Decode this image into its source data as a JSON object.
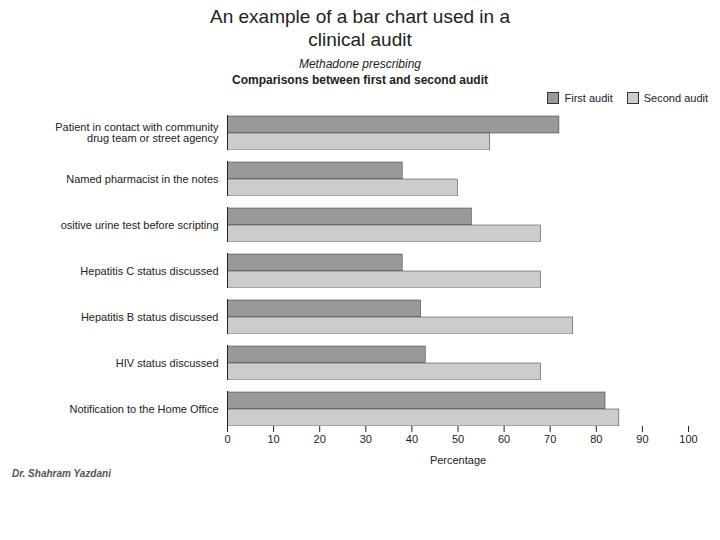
{
  "chart_data": {
    "type": "bar",
    "orientation": "horizontal",
    "title": "An example of a bar chart used in a\nclinical audit",
    "subtitle": "Methadone prescribing\nComparisons between first and second audit",
    "annotations": [
      "Dr. Shahram Yazdani"
    ],
    "categories": [
      "Patient in contact with community\ndrug team or street agency",
      "Named pharmacist in the notes",
      "ositive urine test before scripting",
      "Hepatitis C status discussed",
      "Hepatitis B status discussed",
      "HIV status discussed",
      "Notification to the Home Office"
    ],
    "series": [
      {
        "name": "First audit",
        "color": "#999999",
        "values": [
          72,
          38,
          53,
          38,
          42,
          43,
          82
        ]
      },
      {
        "name": "Second audit",
        "color": "#cccccc",
        "values": [
          57,
          50,
          68,
          68,
          75,
          68,
          85
        ]
      }
    ],
    "xlabel": "Percentage",
    "xlim": [
      0,
      100
    ],
    "xticks": [
      0,
      10,
      20,
      30,
      40,
      50,
      60,
      70,
      80,
      90,
      100
    ],
    "grid": false,
    "legend": "upper right"
  }
}
